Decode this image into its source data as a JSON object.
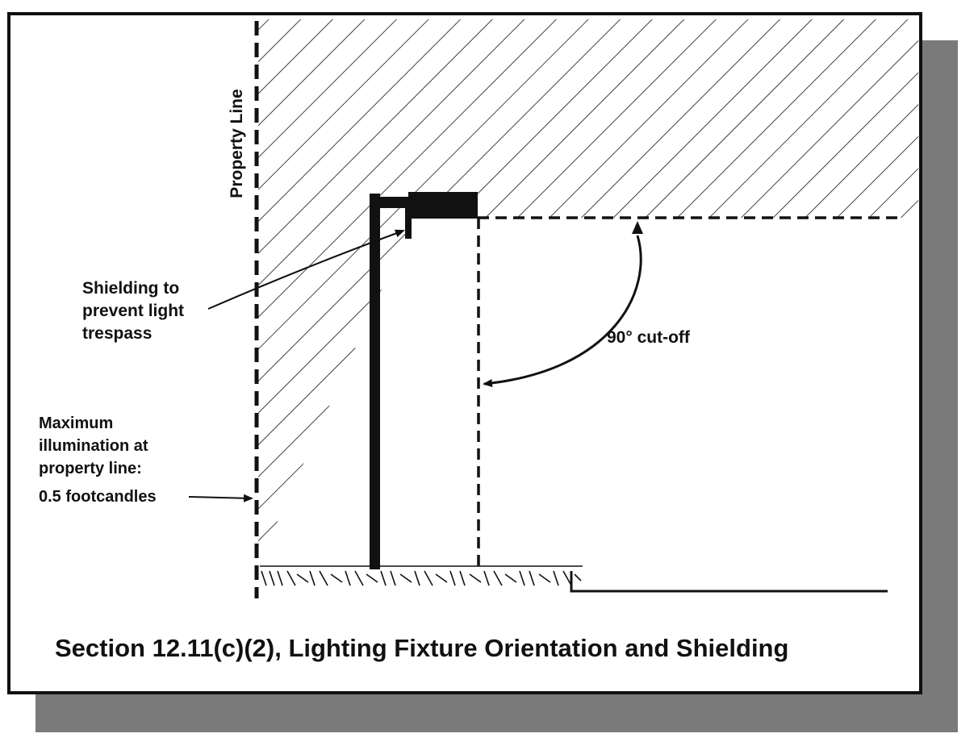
{
  "diagram": {
    "property_line_label": "Property Line",
    "shielding_label": [
      "Shielding to",
      "prevent light",
      "trespass"
    ],
    "cutoff_label": "90° cut-off",
    "max_illumination_label": [
      "Maximum",
      "illumination at",
      "property line:",
      "0.5 footcandles"
    ],
    "caption": "Section 12.11(c)(2), Lighting Fixture Orientation and Shielding"
  }
}
